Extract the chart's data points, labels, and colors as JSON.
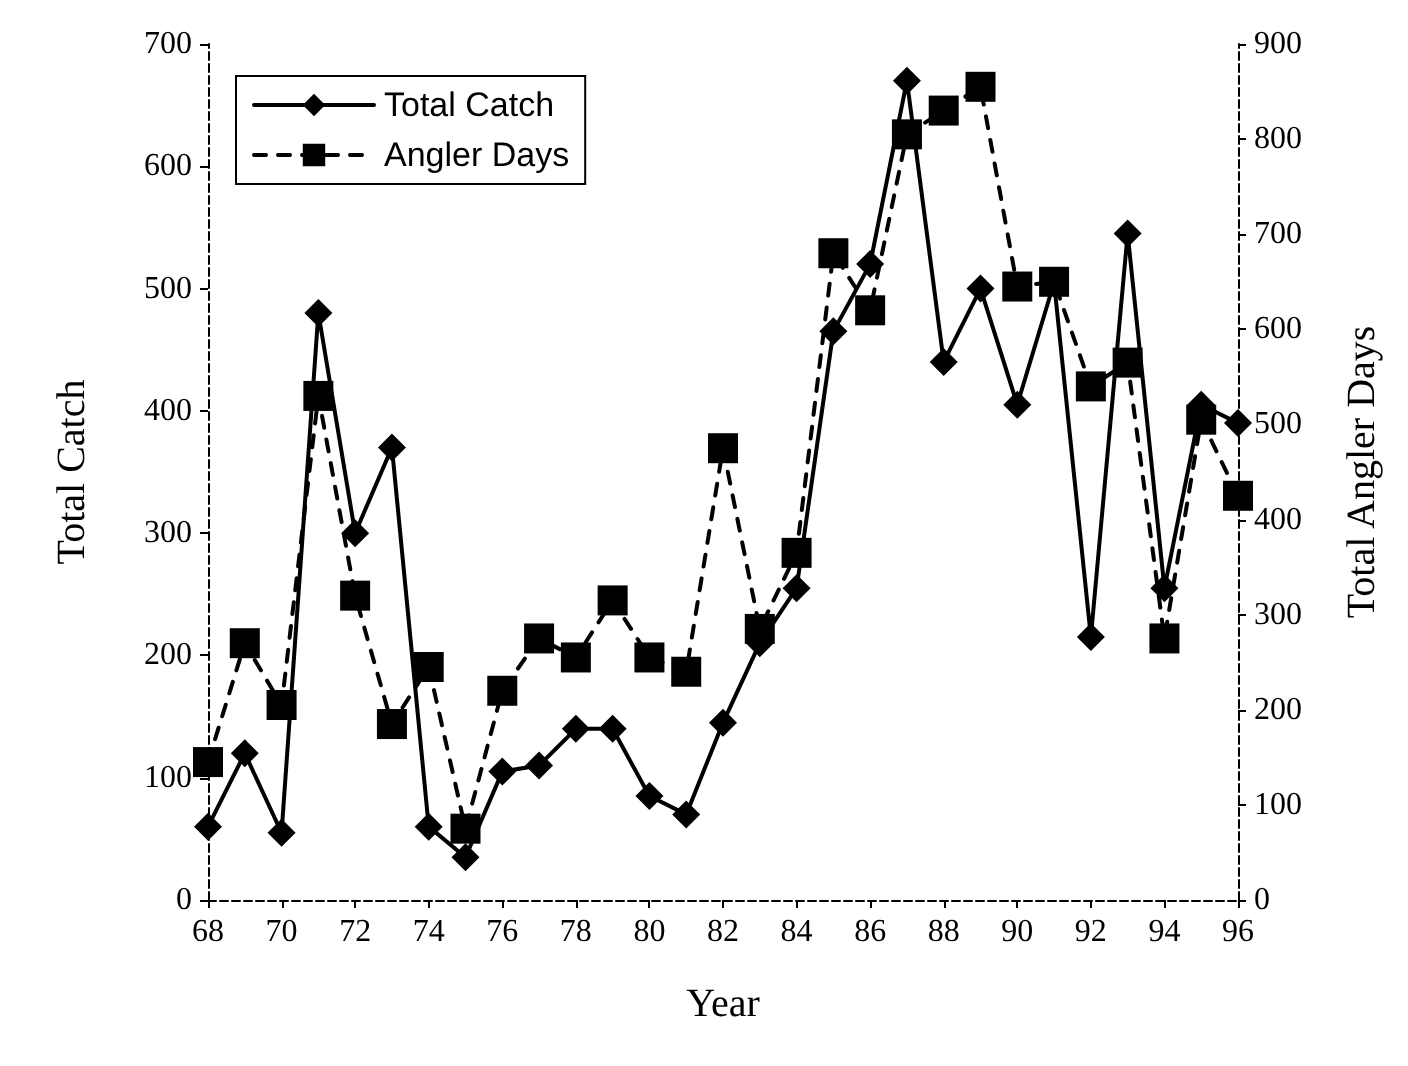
{
  "chart_data": {
    "type": "line",
    "xlabel": "Year",
    "ylabel": "Total Catch",
    "y2label": "Total Angler Days",
    "x": [
      68,
      69,
      70,
      71,
      72,
      73,
      74,
      75,
      76,
      77,
      78,
      79,
      80,
      81,
      82,
      83,
      84,
      85,
      86,
      87,
      88,
      89,
      90,
      91,
      92,
      93,
      94,
      95,
      96
    ],
    "series": [
      {
        "name": "Total Catch",
        "color": "#000000",
        "marker": "diamond",
        "line_style": "solid",
        "values": [
          60,
          120,
          55,
          480,
          300,
          370,
          60,
          35,
          105,
          110,
          140,
          140,
          85,
          70,
          145,
          210,
          255,
          465,
          520,
          670,
          440,
          500,
          405,
          505,
          215,
          545,
          255,
          405,
          390
        ]
      },
      {
        "name": "Angler Days",
        "color": "#000000",
        "marker": "square",
        "line_style": "dashed",
        "axis": "y2",
        "values": [
          145,
          270,
          205,
          530,
          320,
          185,
          245,
          75,
          220,
          275,
          255,
          315,
          255,
          240,
          475,
          285,
          365,
          680,
          620,
          805,
          830,
          855,
          645,
          650,
          540,
          565,
          275,
          505,
          425
        ]
      }
    ],
    "xlim": [
      68,
      96
    ],
    "xticks": [
      68,
      70,
      72,
      74,
      76,
      78,
      80,
      82,
      84,
      86,
      88,
      90,
      92,
      94,
      96
    ],
    "ylim": [
      0,
      700
    ],
    "yticks": [
      0,
      100,
      200,
      300,
      400,
      500,
      600,
      700
    ],
    "y2lim": [
      0,
      900
    ],
    "y2ticks": [
      0,
      100,
      200,
      300,
      400,
      500,
      600,
      700,
      800,
      900
    ],
    "grid": false,
    "legend": "top left"
  }
}
